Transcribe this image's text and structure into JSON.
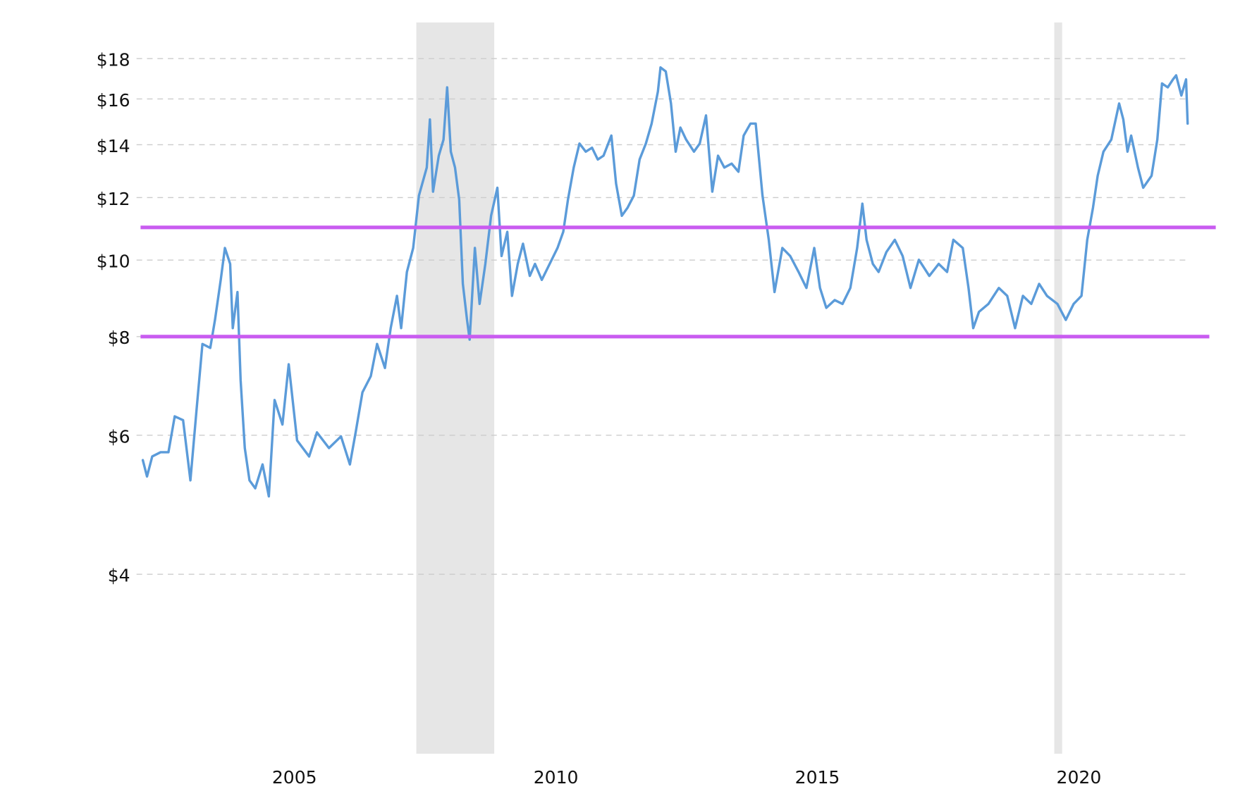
{
  "chart_data": {
    "type": "line",
    "color": "#5b9bd9",
    "log_scale": true,
    "grid": true,
    "xlim": [
      2001.98,
      2022.05
    ],
    "xticks": [
      2005,
      2010,
      2015,
      2020
    ],
    "ylim": [
      2.37,
      20
    ],
    "yticks": [
      {
        "value": 4,
        "label": "$4"
      },
      {
        "value": 6,
        "label": "$6"
      },
      {
        "value": 8,
        "label": "$8"
      },
      {
        "value": 10,
        "label": "$10"
      },
      {
        "value": 12,
        "label": "$12"
      },
      {
        "value": 14,
        "label": "$14"
      },
      {
        "value": 16,
        "label": "$16"
      },
      {
        "value": 18,
        "label": "$18"
      }
    ],
    "shaded_ranges": [
      [
        2007.33,
        2008.82
      ],
      [
        2019.53,
        2019.68
      ]
    ],
    "shade_color": "#e6e6e6",
    "reference_lines": [
      11,
      8
    ],
    "reference_color": "#c95cf0",
    "x": [
      2002.1,
      2002.18,
      2002.28,
      2002.44,
      2002.59,
      2002.71,
      2002.87,
      2003.01,
      2003.13,
      2003.24,
      2003.39,
      2003.48,
      2003.59,
      2003.67,
      2003.77,
      2003.82,
      2003.91,
      2003.97,
      2004.05,
      2004.14,
      2004.25,
      2004.39,
      2004.51,
      2004.62,
      2004.77,
      2004.89,
      2005.05,
      2005.28,
      2005.43,
      2005.66,
      2005.89,
      2006.06,
      2006.17,
      2006.3,
      2006.46,
      2006.58,
      2006.73,
      2006.84,
      2006.96,
      2007.04,
      2007.15,
      2007.27,
      2007.38,
      2007.53,
      2007.59,
      2007.65,
      2007.76,
      2007.85,
      2007.92,
      2007.99,
      2008.07,
      2008.15,
      2008.22,
      2008.3,
      2008.35,
      2008.45,
      2008.54,
      2008.65,
      2008.76,
      2008.88,
      2008.96,
      2009.07,
      2009.16,
      2009.27,
      2009.37,
      2009.5,
      2009.6,
      2009.73,
      2009.88,
      2010.03,
      2010.14,
      2010.23,
      2010.34,
      2010.45,
      2010.57,
      2010.69,
      2010.8,
      2010.91,
      2011.06,
      2011.15,
      2011.26,
      2011.37,
      2011.49,
      2011.6,
      2011.72,
      2011.83,
      2011.95,
      2012.0,
      2012.1,
      2012.2,
      2012.29,
      2012.38,
      2012.49,
      2012.64,
      2012.75,
      2012.87,
      2012.99,
      2013.1,
      2013.22,
      2013.36,
      2013.49,
      2013.59,
      2013.72,
      2013.82,
      2013.95,
      2014.07,
      2014.18,
      2014.33,
      2014.48,
      2014.64,
      2014.79,
      2014.94,
      2015.05,
      2015.17,
      2015.33,
      2015.48,
      2015.63,
      2015.76,
      2015.86,
      2015.94,
      2016.06,
      2016.17,
      2016.32,
      2016.48,
      2016.63,
      2016.78,
      2016.94,
      2017.14,
      2017.32,
      2017.48,
      2017.6,
      2017.78,
      2017.89,
      2017.98,
      2018.09,
      2018.27,
      2018.47,
      2018.63,
      2018.78,
      2018.93,
      2019.09,
      2019.24,
      2019.39,
      2019.59,
      2019.75,
      2019.9,
      2020.05,
      2020.16,
      2020.27,
      2020.36,
      2020.47,
      2020.62,
      2020.77,
      2020.85,
      2020.93,
      2021.0,
      2021.13,
      2021.23,
      2021.39,
      2021.5,
      2021.59,
      2021.7,
      2021.8,
      2021.86,
      2021.96,
      2022.05,
      2022.08
    ],
    "values": [
      5.58,
      5.32,
      5.64,
      5.71,
      5.71,
      6.34,
      6.27,
      5.26,
      6.49,
      7.83,
      7.74,
      8.4,
      9.44,
      10.36,
      9.89,
      8.2,
      9.11,
      7.05,
      5.78,
      5.26,
      5.14,
      5.51,
      5.02,
      6.65,
      6.19,
      7.38,
      5.91,
      5.64,
      6.05,
      5.78,
      5.98,
      5.51,
      6.05,
      6.8,
      7.13,
      7.83,
      7.3,
      8.2,
      9.01,
      8.2,
      9.66,
      10.36,
      12.07,
      13.1,
      15.07,
      12.21,
      13.56,
      14.21,
      16.55,
      13.72,
      13.1,
      11.93,
      9.33,
      8.4,
      7.93,
      10.36,
      8.8,
      9.89,
      11.38,
      12.35,
      10.12,
      10.86,
      9.01,
      9.89,
      10.49,
      9.55,
      9.89,
      9.44,
      9.89,
      10.36,
      10.86,
      11.93,
      13.1,
      14.05,
      13.72,
      13.88,
      13.41,
      13.56,
      14.38,
      12.5,
      11.38,
      11.65,
      12.07,
      13.41,
      14.05,
      14.89,
      16.35,
      17.54,
      17.34,
      15.79,
      13.72,
      14.72,
      14.21,
      13.72,
      14.05,
      15.25,
      12.21,
      13.56,
      13.1,
      13.25,
      12.94,
      14.38,
      14.89,
      14.89,
      12.07,
      10.61,
      9.11,
      10.36,
      10.12,
      9.66,
      9.22,
      10.36,
      9.22,
      8.7,
      8.9,
      8.8,
      9.22,
      10.36,
      11.79,
      10.61,
      9.89,
      9.66,
      10.24,
      10.61,
      10.12,
      9.22,
      10.01,
      9.55,
      9.89,
      9.66,
      10.61,
      10.36,
      9.22,
      8.2,
      8.6,
      8.8,
      9.22,
      9.01,
      8.2,
      9.01,
      8.8,
      9.33,
      9.01,
      8.8,
      8.4,
      8.8,
      9.01,
      10.61,
      11.65,
      12.79,
      13.72,
      14.21,
      15.79,
      15.07,
      13.72,
      14.38,
      13.1,
      12.35,
      12.79,
      14.21,
      16.74,
      16.55,
      16.94,
      17.14,
      16.16,
      16.94,
      14.89
    ]
  }
}
